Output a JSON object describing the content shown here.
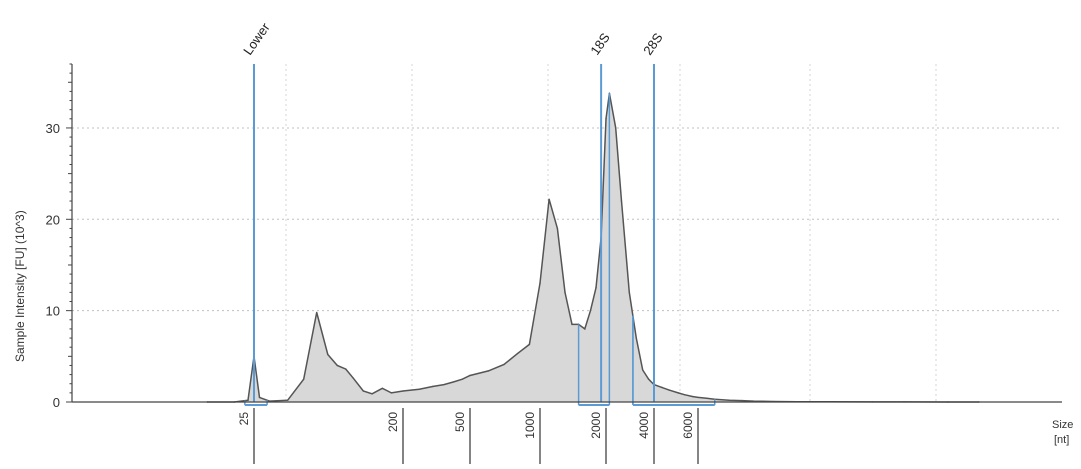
{
  "chart_data": {
    "type": "area",
    "ylabel": "Sample Intensity [FU] (10^3)",
    "xlabel": "Size",
    "xunit": "[nt]",
    "ylim": [
      0,
      37
    ],
    "yticks": [
      0,
      10,
      20,
      30
    ],
    "grid": true,
    "x_scale": "log",
    "x": [
      13,
      19,
      23,
      25,
      27,
      31,
      40,
      50,
      60,
      70,
      80,
      90,
      100,
      115,
      130,
      150,
      170,
      200,
      250,
      300,
      350,
      400,
      450,
      500,
      600,
      700,
      800,
      900,
      1000,
      1100,
      1200,
      1300,
      1400,
      1500,
      1600,
      1700,
      1800,
      1900,
      2000,
      2100,
      2300,
      2500,
      2800,
      3100,
      3400,
      3700,
      4000,
      4300,
      4600,
      5000,
      5300,
      5700,
      6000,
      6500,
      7000,
      8000,
      9000,
      10000,
      12000,
      15000,
      20000,
      30000,
      40000,
      60000,
      80000
    ],
    "y": [
      0,
      0,
      0.2,
      5.0,
      0.5,
      0.1,
      0.2,
      2.5,
      9.8,
      5.2,
      4.0,
      3.6,
      2.6,
      1.2,
      0.9,
      1.5,
      1.0,
      1.2,
      1.4,
      1.7,
      1.9,
      2.2,
      2.5,
      2.9,
      3.4,
      4.1,
      5.3,
      6.3,
      13.0,
      22.2,
      19.0,
      12.0,
      8.5,
      8.5,
      8.0,
      10.0,
      12.5,
      18.0,
      31.0,
      33.8,
      30.0,
      22.0,
      12.0,
      7.0,
      3.5,
      2.5,
      1.9,
      1.6,
      1.3,
      1.0,
      0.8,
      0.6,
      0.5,
      0.4,
      0.3,
      0.2,
      0.15,
      0.1,
      0.05,
      0.03,
      0.02,
      0.01,
      0.01,
      0,
      0
    ],
    "markers": [
      {
        "label": "Lower",
        "x": 25
      },
      {
        "label": "18S",
        "x": 1900
      },
      {
        "label": "28S",
        "x": 4000
      }
    ],
    "ladder": [
      "25",
      "200",
      "500",
      "1000",
      "2000",
      "4000",
      "6000"
    ],
    "ladder_x": [
      25,
      200,
      500,
      1000,
      2000,
      4000,
      6000
    ],
    "peak_regions": [
      {
        "label": "Lower",
        "from": 22,
        "to": 30
      },
      {
        "label": "18S",
        "from": 1500,
        "to": 2100
      },
      {
        "label": "28S",
        "from": 2950,
        "to": 7000
      }
    ],
    "colors": {
      "fill": "#d8d8d8",
      "curve": "#555555",
      "marker": "#5b9bd5",
      "grid": "#c0c0c0",
      "axis": "#444444"
    }
  }
}
